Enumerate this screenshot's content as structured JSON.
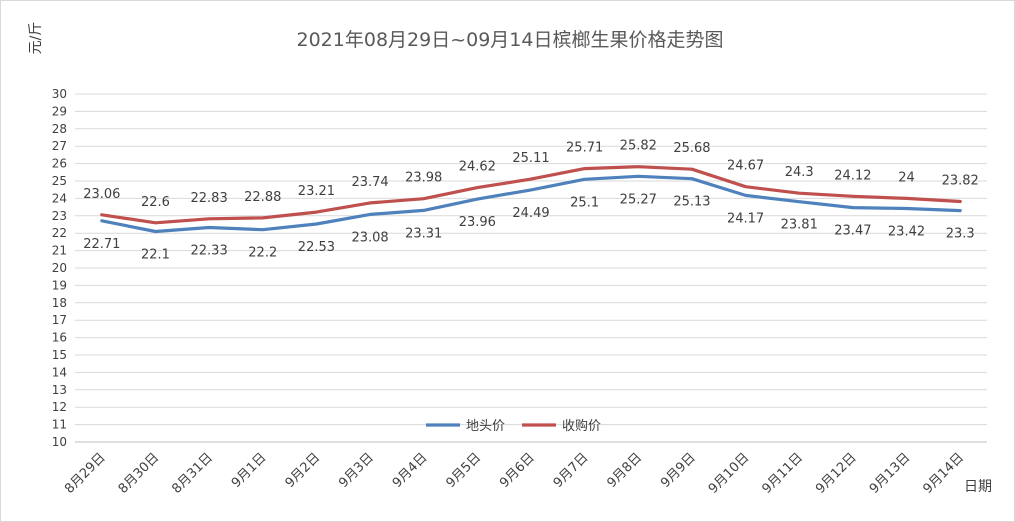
{
  "chart_data": {
    "type": "line",
    "title": "2021年08月29日~09月14日槟榔生果价格走势图",
    "ylabel": "元/斤",
    "xlabel": "日期",
    "ylim": [
      10,
      30
    ],
    "ytick_step": 1,
    "grid": true,
    "legend_position": "bottom-center",
    "categories": [
      "8月29日",
      "8月30日",
      "8月31日",
      "9月1日",
      "9月2日",
      "9月3日",
      "9月4日",
      "9月5日",
      "9月6日",
      "9月7日",
      "9月8日",
      "9月9日",
      "9月10日",
      "9月11日",
      "9月12日",
      "9月13日",
      "9月14日"
    ],
    "series": [
      {
        "name": "地头价",
        "color": "#4f81bd",
        "label_position": "below",
        "values": [
          22.71,
          22.1,
          22.33,
          22.2,
          22.53,
          23.08,
          23.31,
          23.96,
          24.49,
          25.1,
          25.27,
          25.13,
          24.17,
          23.81,
          23.47,
          23.42,
          23.3
        ]
      },
      {
        "name": "收购价",
        "color": "#c0504d",
        "label_position": "above",
        "values": [
          23.06,
          22.6,
          22.83,
          22.88,
          23.21,
          23.74,
          23.98,
          24.62,
          25.11,
          25.71,
          25.82,
          25.68,
          24.67,
          24.3,
          24.12,
          24,
          23.82
        ]
      }
    ]
  }
}
